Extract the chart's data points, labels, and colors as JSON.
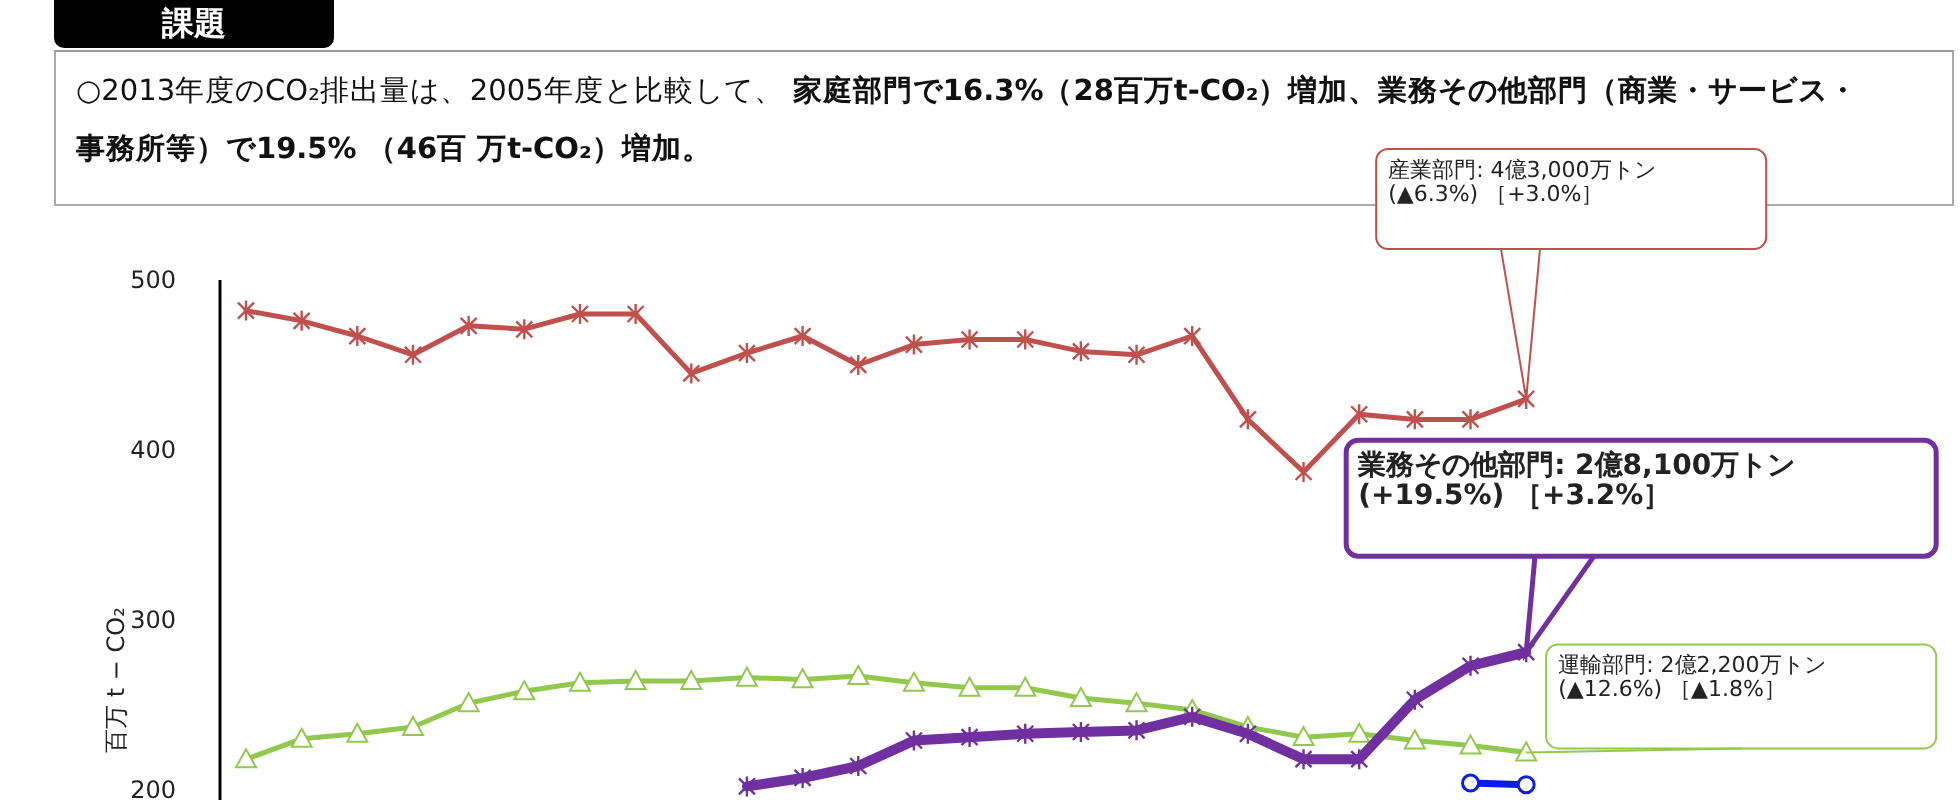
{
  "chart_data": {
    "type": "line",
    "title": "課題",
    "subtitle": "○2013年度のCO₂排出量は、2005年度と比較して、 **家庭部門で16.3%（28百万t-CO₂）増加、業務その他部門（商業・サービス・事務所等）で19.5% （46百 万t-CO₂）増加。**",
    "ylabel": "百万 t − CO₂",
    "categories": [
      null,
      null,
      null,
      null,
      null,
      null,
      null,
      null,
      null,
      null,
      null,
      null,
      null,
      null,
      null,
      null,
      null,
      null,
      null,
      null,
      null,
      null,
      null,
      null
    ],
    "ylim": [
      194,
      500
    ],
    "yticks": [
      200,
      300,
      400,
      500
    ],
    "tick_labels": "y",
    "grid": false,
    "series": [
      {
        "color": "#c0504d",
        "marker": "cross",
        "values": [
          482,
          476,
          467,
          456,
          473,
          471,
          480,
          480,
          445,
          457,
          467,
          450,
          462,
          465,
          465,
          458,
          456,
          467,
          418,
          387,
          421,
          418,
          418,
          430
        ]
      },
      {
        "color": "#92c84e",
        "marker": "triangle",
        "values": [
          218,
          230,
          233,
          237,
          251,
          258,
          263,
          264,
          264,
          266,
          265,
          267,
          263,
          260,
          260,
          254,
          251,
          247,
          237,
          231,
          233,
          229,
          226,
          222
        ]
      },
      {
        "color": "#7030a0",
        "marker": "cross",
        "values": [
          null,
          null,
          null,
          null,
          null,
          null,
          null,
          null,
          null,
          202,
          207,
          214,
          229,
          231,
          233,
          234,
          235,
          243,
          233,
          218,
          218,
          253,
          273,
          281
        ]
      },
      {
        "color": "#0a1ee6",
        "marker": "circle",
        "values": [
          null,
          null,
          null,
          null,
          null,
          null,
          null,
          null,
          null,
          null,
          null,
          null,
          null,
          null,
          null,
          null,
          null,
          null,
          null,
          null,
          null,
          null,
          204,
          203
        ]
      }
    ],
    "annotations": [
      "産業部門: 4億3,000万トン\n(▲6.3%) ［+3.0%］",
      "業務その他部門: 2億8,100万トン\n(+19.5%) ［+3.2%］",
      "運輸部門: 2億2,200万トン\n(▲12.6%) ［▲1.8%］"
    ]
  }
}
